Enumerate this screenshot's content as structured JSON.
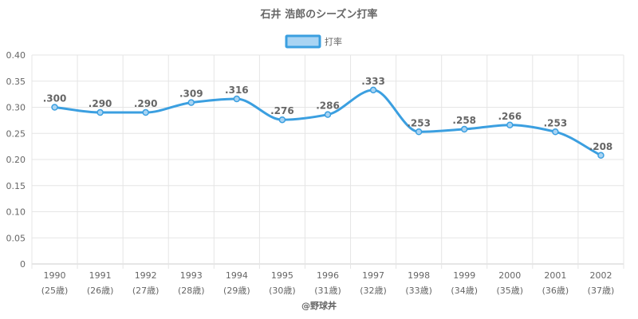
{
  "chart_data": {
    "type": "line",
    "title": "石井 浩郎のシーズン打率",
    "legend": {
      "label": "打率",
      "placement": "top-center"
    },
    "x": [
      "1990",
      "1991",
      "1992",
      "1993",
      "1994",
      "1995",
      "1996",
      "1997",
      "1998",
      "1999",
      "2000",
      "2001",
      "2002"
    ],
    "x_sub": [
      "(25歳)",
      "(26歳)",
      "(27歳)",
      "(28歳)",
      "(29歳)",
      "(30歳)",
      "(31歳)",
      "(32歳)",
      "(33歳)",
      "(34歳)",
      "(35歳)",
      "(36歳)",
      "(37歳)"
    ],
    "series": [
      {
        "name": "打率",
        "values": [
          0.3,
          0.29,
          0.29,
          0.309,
          0.316,
          0.276,
          0.286,
          0.333,
          0.253,
          0.258,
          0.266,
          0.253,
          0.208
        ],
        "labels": [
          ".300",
          ".290",
          ".290",
          ".309",
          ".316",
          ".276",
          ".286",
          ".333",
          ".253",
          ".258",
          ".266",
          ".253",
          ".208"
        ]
      }
    ],
    "ylim": [
      0,
      0.4
    ],
    "yticks": [
      "0",
      "0.05",
      "0.10",
      "0.15",
      "0.20",
      "0.25",
      "0.30",
      "0.35",
      "0.40"
    ],
    "grid": true,
    "colors": {
      "line": "#3b9fe0",
      "fill": "#a9d4f3",
      "grid": "#e5e5e5",
      "text": "#666666"
    }
  },
  "footer": {
    "credit": "@野球丼"
  }
}
